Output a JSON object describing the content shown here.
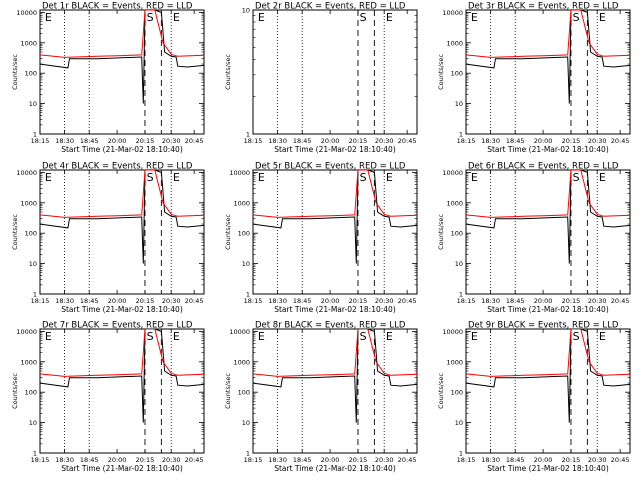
{
  "figure": {
    "xlabel": "Start Time (21-Mar-02 18:10:40)",
    "ylabel": "Counts/sec",
    "x_tick_labels": [
      "18:15",
      "18:30",
      "18:45",
      "20:00",
      "20:15",
      "20:30",
      "20:45"
    ],
    "y_tick_labels": [
      "1",
      "10",
      "100",
      "1000",
      "10000"
    ],
    "colors": {
      "events": "#000000",
      "lld": "#ff0000",
      "background": "#ffffff"
    }
  },
  "chart_data": [
    {
      "type": "line",
      "title": "Det 1r BLACK = Events, RED = LLD",
      "xlabel": "Start Time (21-Mar-02 18:10:40)",
      "ylabel": "Counts/sec",
      "yscale": "log",
      "ylim": [
        1,
        12000
      ],
      "markers": [
        "E",
        "S",
        "E"
      ],
      "series": [
        {
          "name": "Events",
          "x": [
            0.0,
            0.17,
            0.18,
            0.35,
            0.5,
            0.62,
            0.63,
            0.64,
            0.7,
            0.74,
            0.76,
            0.8,
            0.83,
            0.84,
            0.9,
            1.0
          ],
          "y": [
            200,
            150,
            300,
            300,
            320,
            340,
            10,
            12000,
            12000,
            10000,
            500,
            360,
            340,
            170,
            160,
            180
          ]
        },
        {
          "name": "LLD",
          "x": [
            0.0,
            0.15,
            0.35,
            0.5,
            0.62,
            0.64,
            0.7,
            0.75,
            0.8,
            0.84,
            0.9,
            1.0
          ],
          "y": [
            400,
            330,
            360,
            380,
            400,
            12000,
            12000,
            1000,
            420,
            360,
            370,
            390
          ]
        }
      ]
    },
    {
      "type": "line",
      "title": "Det 2r BLACK = Events, RED = LLD",
      "xlabel": "Start Time (21-Mar-02 18:10:40)",
      "ylabel": "Counts/sec",
      "yscale": "log",
      "ylim": [
        1,
        10
      ],
      "markers": [
        "E",
        "S",
        "E"
      ],
      "series": []
    },
    {
      "type": "line",
      "title": "Det 3r BLACK = Events, RED = LLD",
      "xlabel": "Start Time (21-Mar-02 18:10:40)",
      "ylabel": "Counts/sec",
      "yscale": "log",
      "ylim": [
        1,
        12000
      ],
      "markers": [
        "E",
        "S",
        "E"
      ],
      "series": [
        {
          "name": "Events",
          "x": [
            0.0,
            0.17,
            0.18,
            0.35,
            0.5,
            0.62,
            0.63,
            0.64,
            0.7,
            0.74,
            0.76,
            0.8,
            0.83,
            0.84,
            0.9,
            1.0
          ],
          "y": [
            200,
            150,
            300,
            300,
            320,
            340,
            10,
            12000,
            12000,
            10000,
            500,
            360,
            340,
            170,
            160,
            180
          ]
        },
        {
          "name": "LLD",
          "x": [
            0.0,
            0.15,
            0.35,
            0.5,
            0.62,
            0.64,
            0.7,
            0.75,
            0.8,
            0.84,
            0.9,
            1.0
          ],
          "y": [
            400,
            330,
            360,
            380,
            400,
            12000,
            12000,
            1000,
            420,
            360,
            370,
            390
          ]
        }
      ]
    },
    {
      "type": "line",
      "title": "Det 4r BLACK = Events, RED = LLD",
      "xlabel": "Start Time (21-Mar-02 18:10:40)",
      "ylabel": "Counts/sec",
      "yscale": "log",
      "ylim": [
        1,
        12000
      ],
      "markers": [
        "E",
        "S",
        "E"
      ],
      "series": [
        {
          "name": "Events",
          "x": [
            0.0,
            0.17,
            0.18,
            0.35,
            0.5,
            0.62,
            0.63,
            0.64,
            0.7,
            0.74,
            0.76,
            0.8,
            0.83,
            0.84,
            0.9,
            1.0
          ],
          "y": [
            200,
            150,
            300,
            300,
            320,
            340,
            10,
            12000,
            12000,
            10000,
            500,
            360,
            340,
            170,
            160,
            180
          ]
        },
        {
          "name": "LLD",
          "x": [
            0.0,
            0.15,
            0.35,
            0.5,
            0.62,
            0.64,
            0.7,
            0.75,
            0.8,
            0.84,
            0.9,
            1.0
          ],
          "y": [
            400,
            330,
            360,
            380,
            400,
            12000,
            12000,
            1000,
            420,
            360,
            370,
            390
          ]
        }
      ]
    },
    {
      "type": "line",
      "title": "Det 5r BLACK = Events, RED = LLD",
      "xlabel": "Start Time (21-Mar-02 18:10:40)",
      "ylabel": "Counts/sec",
      "yscale": "log",
      "ylim": [
        1,
        12000
      ],
      "markers": [
        "E",
        "S",
        "E"
      ],
      "series": [
        {
          "name": "Events",
          "x": [
            0.0,
            0.17,
            0.18,
            0.35,
            0.5,
            0.62,
            0.63,
            0.64,
            0.7,
            0.74,
            0.76,
            0.8,
            0.83,
            0.84,
            0.9,
            1.0
          ],
          "y": [
            200,
            150,
            300,
            300,
            320,
            340,
            10,
            12000,
            12000,
            10000,
            500,
            360,
            340,
            170,
            160,
            180
          ]
        },
        {
          "name": "LLD",
          "x": [
            0.0,
            0.15,
            0.35,
            0.5,
            0.62,
            0.64,
            0.7,
            0.75,
            0.8,
            0.84,
            0.9,
            1.0
          ],
          "y": [
            400,
            330,
            360,
            380,
            400,
            12000,
            12000,
            1000,
            420,
            360,
            370,
            390
          ]
        }
      ]
    },
    {
      "type": "line",
      "title": "Det 6r BLACK = Events, RED = LLD",
      "xlabel": "Start Time (21-Mar-02 18:10:40)",
      "ylabel": "Counts/sec",
      "yscale": "log",
      "ylim": [
        1,
        12000
      ],
      "markers": [
        "E",
        "S",
        "E"
      ],
      "series": [
        {
          "name": "Events",
          "x": [
            0.0,
            0.17,
            0.18,
            0.35,
            0.5,
            0.62,
            0.63,
            0.64,
            0.7,
            0.74,
            0.76,
            0.8,
            0.83,
            0.84,
            0.9,
            1.0
          ],
          "y": [
            200,
            150,
            300,
            300,
            320,
            340,
            10,
            12000,
            12000,
            10000,
            500,
            360,
            340,
            170,
            160,
            180
          ]
        },
        {
          "name": "LLD",
          "x": [
            0.0,
            0.15,
            0.35,
            0.5,
            0.62,
            0.64,
            0.7,
            0.75,
            0.8,
            0.84,
            0.9,
            1.0
          ],
          "y": [
            400,
            330,
            360,
            380,
            400,
            12000,
            12000,
            1000,
            420,
            360,
            370,
            390
          ]
        }
      ]
    },
    {
      "type": "line",
      "title": "Det 7r BLACK = Events, RED = LLD",
      "xlabel": "Start Time (21-Mar-02 18:10:40)",
      "ylabel": "Counts/sec",
      "yscale": "log",
      "ylim": [
        1,
        12000
      ],
      "markers": [
        "E",
        "S",
        "E"
      ],
      "series": [
        {
          "name": "Events",
          "x": [
            0.0,
            0.17,
            0.18,
            0.35,
            0.5,
            0.62,
            0.63,
            0.64,
            0.7,
            0.74,
            0.76,
            0.8,
            0.83,
            0.84,
            0.9,
            1.0
          ],
          "y": [
            200,
            150,
            300,
            300,
            320,
            340,
            10,
            12000,
            12000,
            10000,
            500,
            360,
            340,
            170,
            160,
            180
          ]
        },
        {
          "name": "LLD",
          "x": [
            0.0,
            0.15,
            0.35,
            0.5,
            0.62,
            0.64,
            0.7,
            0.75,
            0.8,
            0.84,
            0.9,
            1.0
          ],
          "y": [
            400,
            330,
            360,
            380,
            400,
            12000,
            12000,
            1000,
            420,
            360,
            370,
            390
          ]
        }
      ]
    },
    {
      "type": "line",
      "title": "Det 8r BLACK = Events, RED = LLD",
      "xlabel": "Start Time (21-Mar-02 18:10:40)",
      "ylabel": "Counts/sec",
      "yscale": "log",
      "ylim": [
        1,
        12000
      ],
      "markers": [
        "E",
        "S",
        "E"
      ],
      "series": [
        {
          "name": "Events",
          "x": [
            0.0,
            0.17,
            0.18,
            0.35,
            0.5,
            0.62,
            0.63,
            0.64,
            0.7,
            0.74,
            0.76,
            0.8,
            0.83,
            0.84,
            0.9,
            1.0
          ],
          "y": [
            200,
            150,
            300,
            300,
            320,
            340,
            10,
            12000,
            12000,
            10000,
            500,
            360,
            340,
            170,
            160,
            180
          ]
        },
        {
          "name": "LLD",
          "x": [
            0.0,
            0.15,
            0.35,
            0.5,
            0.62,
            0.64,
            0.7,
            0.75,
            0.8,
            0.84,
            0.9,
            1.0
          ],
          "y": [
            400,
            330,
            360,
            380,
            400,
            12000,
            12000,
            1000,
            420,
            360,
            370,
            390
          ]
        }
      ]
    },
    {
      "type": "line",
      "title": "Det 9r BLACK = Events, RED = LLD",
      "xlabel": "Start Time (21-Mar-02 18:10:40)",
      "ylabel": "Counts/sec",
      "yscale": "log",
      "ylim": [
        1,
        12000
      ],
      "markers": [
        "E",
        "S",
        "E"
      ],
      "series": [
        {
          "name": "Events",
          "x": [
            0.0,
            0.17,
            0.18,
            0.35,
            0.5,
            0.62,
            0.63,
            0.64,
            0.7,
            0.74,
            0.76,
            0.8,
            0.83,
            0.84,
            0.9,
            1.0
          ],
          "y": [
            200,
            150,
            300,
            300,
            320,
            340,
            10,
            12000,
            12000,
            10000,
            500,
            360,
            340,
            170,
            160,
            180
          ]
        },
        {
          "name": "LLD",
          "x": [
            0.0,
            0.15,
            0.35,
            0.5,
            0.62,
            0.64,
            0.7,
            0.75,
            0.8,
            0.84,
            0.9,
            1.0
          ],
          "y": [
            400,
            330,
            360,
            380,
            400,
            12000,
            12000,
            1000,
            420,
            360,
            370,
            390
          ]
        }
      ]
    }
  ]
}
